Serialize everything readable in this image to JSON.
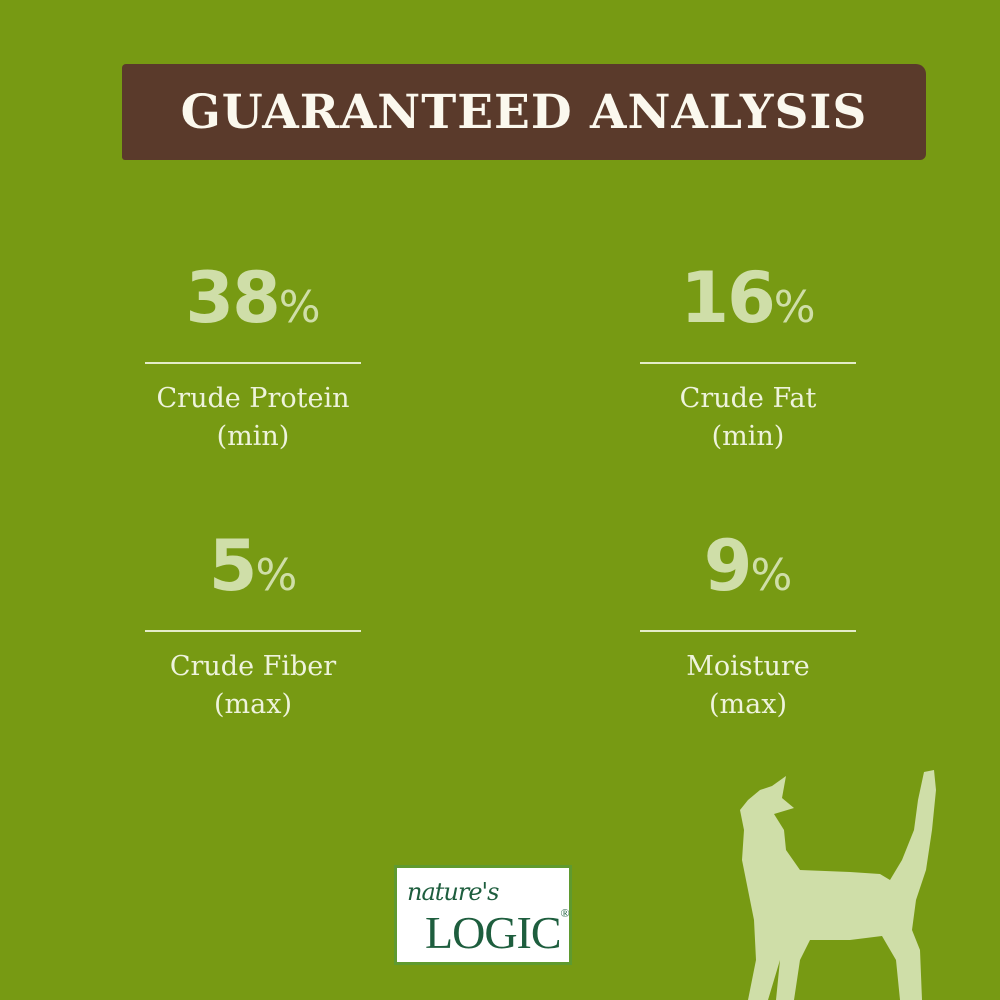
{
  "title": "GUARANTEED ANALYSIS",
  "stats": [
    {
      "value": "38",
      "unit": "%",
      "label": "Crude Protein",
      "qualifier": "(min)"
    },
    {
      "value": "16",
      "unit": "%",
      "label": "Crude Fat",
      "qualifier": "(min)"
    },
    {
      "value": "5",
      "unit": "%",
      "label": "Crude Fiber",
      "qualifier": "(max)"
    },
    {
      "value": "9",
      "unit": "%",
      "label": "Moisture",
      "qualifier": "(max)"
    }
  ],
  "logo": {
    "script": "nature's",
    "brand": "LOGIC",
    "mark": "®"
  },
  "colors": {
    "background": "#779a13",
    "banner": "#5a3a2b",
    "accent": "#cfdea8",
    "logo": "#1e5e3e"
  },
  "icons": [
    "cat-silhouette-icon"
  ]
}
